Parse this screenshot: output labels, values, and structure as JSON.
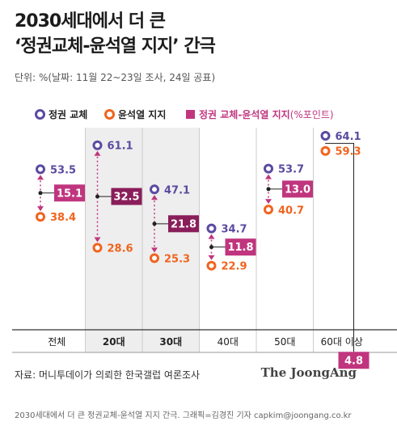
{
  "title_line1": "2030세대에서 더 큰",
  "title_line2": "‘정권교체-윤석열 지지’ 간극",
  "unit_note": "단위: %(날짜: 11월 22~23일 조사, 24일 공표)",
  "legend": {
    "regime": "정권 교체",
    "yoon": "윤석열 지지",
    "gap": "정권 교체-윤석열 지지",
    "gap_unit": "(%포인트)"
  },
  "colors": {
    "regime": "#5b4aa0",
    "yoon": "#f0641e",
    "gap": "#c0357e",
    "gap_dark": "#8a1e5a",
    "highlight_bg": "#eeeeee"
  },
  "chart_data": {
    "type": "dot-gap",
    "categories": [
      "전체",
      "20대",
      "30대",
      "40대",
      "50대",
      "60대 이상"
    ],
    "highlighted": [
      "20대",
      "30대"
    ],
    "series": [
      {
        "name": "정권 교체",
        "values": [
          53.5,
          61.1,
          47.1,
          34.7,
          53.7,
          64.1
        ]
      },
      {
        "name": "윤석열 지지",
        "values": [
          38.4,
          28.6,
          25.3,
          22.9,
          40.7,
          59.3
        ]
      },
      {
        "name": "정권 교체-윤석열 지지",
        "values": [
          15.1,
          32.5,
          21.8,
          11.8,
          13.0,
          4.8
        ]
      }
    ]
  },
  "source": "자료: 머니투데이가 의뢰한 한국갤럽 여론조사",
  "logo": "The JoongAng",
  "credit": "2030세대에서 더 큰 정권교체-윤석열 지지 간극. 그래픽=김경진 기자 capkim@joongang.co.kr"
}
